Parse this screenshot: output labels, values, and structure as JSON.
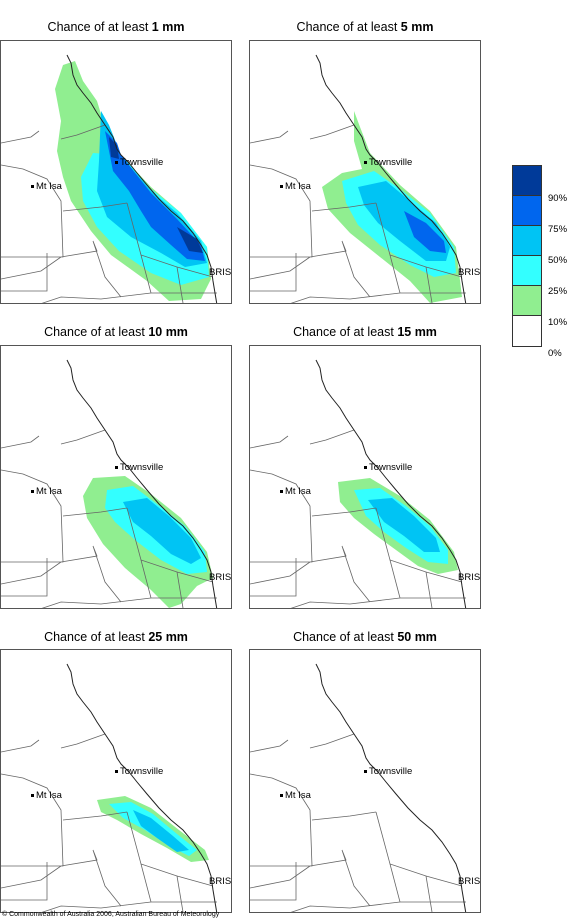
{
  "panels": [
    {
      "title_prefix": "Chance of at least ",
      "amount": "1 mm",
      "level": 0
    },
    {
      "title_prefix": "Chance of at least ",
      "amount": "5 mm",
      "level": 1
    },
    {
      "title_prefix": "Chance of at least ",
      "amount": "10 mm",
      "level": 2
    },
    {
      "title_prefix": "Chance of at least ",
      "amount": "15 mm",
      "level": 3
    },
    {
      "title_prefix": "Chance of at least ",
      "amount": "25 mm",
      "level": 4
    },
    {
      "title_prefix": "Chance of at least ",
      "amount": "50 mm",
      "level": 5
    }
  ],
  "places": {
    "townsville": "Townsville",
    "mt_isa": "Mt Isa",
    "brisbane": "BRIS"
  },
  "legend": {
    "labels": [
      "90%",
      "75%",
      "50%",
      "25%",
      "10%",
      "0%"
    ],
    "colors": [
      "#003a99",
      "#0066ee",
      "#00c4f4",
      "#33ffff",
      "#90ee90",
      "#ffffff"
    ]
  },
  "copyright": "© Commonwealth of Australia 2006, Australian Bureau of Meteorology"
}
